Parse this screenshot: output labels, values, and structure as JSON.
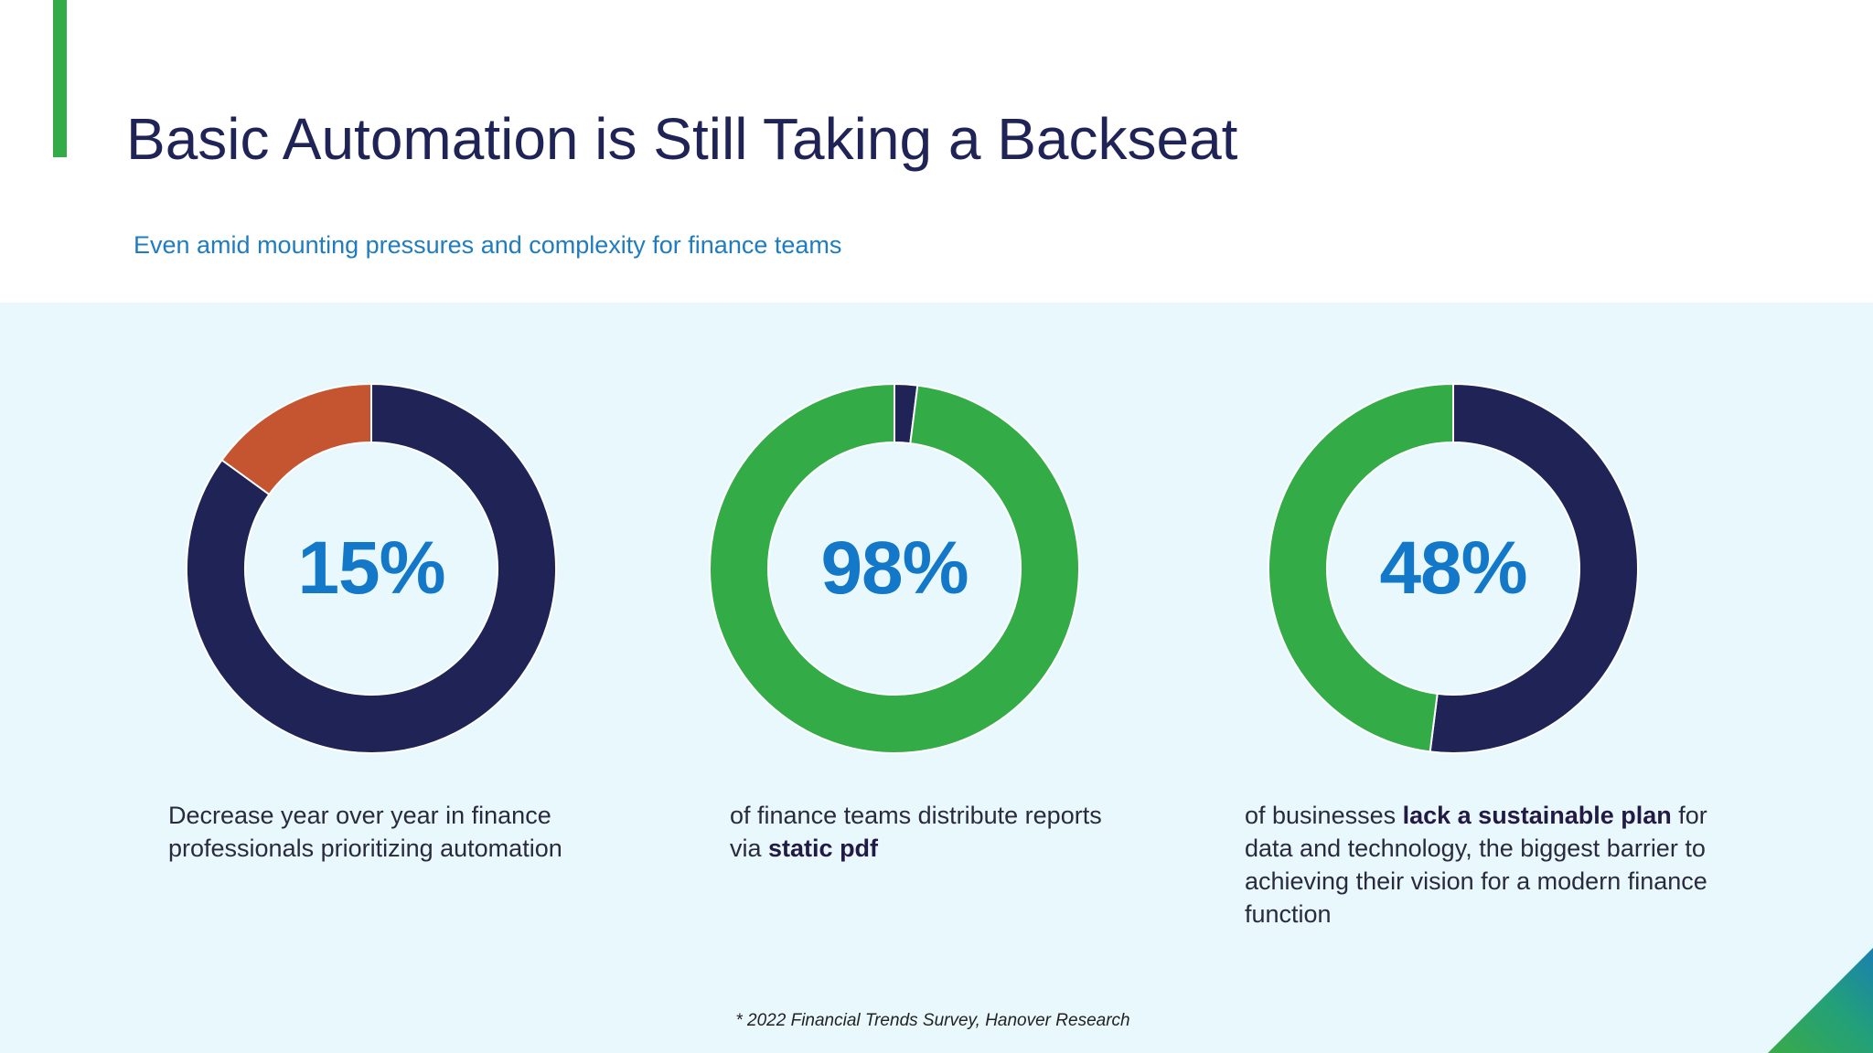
{
  "slide": {
    "title": "Basic Automation is Still Taking a Backseat",
    "subtitle": "Even amid mounting pressures and complexity for finance teams",
    "footnote": "* 2022 Financial Trends Survey, Hanover Research"
  },
  "colors": {
    "accent_green": "#33ab47",
    "navy": "#1f2356",
    "orange": "#c55530",
    "blue_text": "#1478c8",
    "subtitle_blue": "#1f7cc0",
    "title_navy": "#1f2356",
    "panel_bg": "#e9f8fc"
  },
  "chart_data": [
    {
      "type": "donut",
      "center_label": "15%",
      "slices": [
        {
          "value": 85,
          "color": "#1f2356"
        },
        {
          "value": 15,
          "color": "#c55530"
        }
      ],
      "caption": {
        "before": "Decrease year over year in finance professionals prioritizing automation",
        "bold": "",
        "after": ""
      }
    },
    {
      "type": "donut",
      "center_label": "98%",
      "slices": [
        {
          "value": 2,
          "color": "#1f2356"
        },
        {
          "value": 98,
          "color": "#33ab47"
        }
      ],
      "caption": {
        "before": "of finance teams distribute reports via ",
        "bold": "static pdf",
        "after": ""
      }
    },
    {
      "type": "donut",
      "center_label": "48%",
      "slices": [
        {
          "value": 52,
          "color": "#1f2356"
        },
        {
          "value": 48,
          "color": "#33ab47"
        }
      ],
      "caption": {
        "before": "of businesses ",
        "bold": "lack a sustainable plan",
        "after": " for data and technology, the biggest barrier to achieving their vision for a modern finance function"
      }
    }
  ]
}
